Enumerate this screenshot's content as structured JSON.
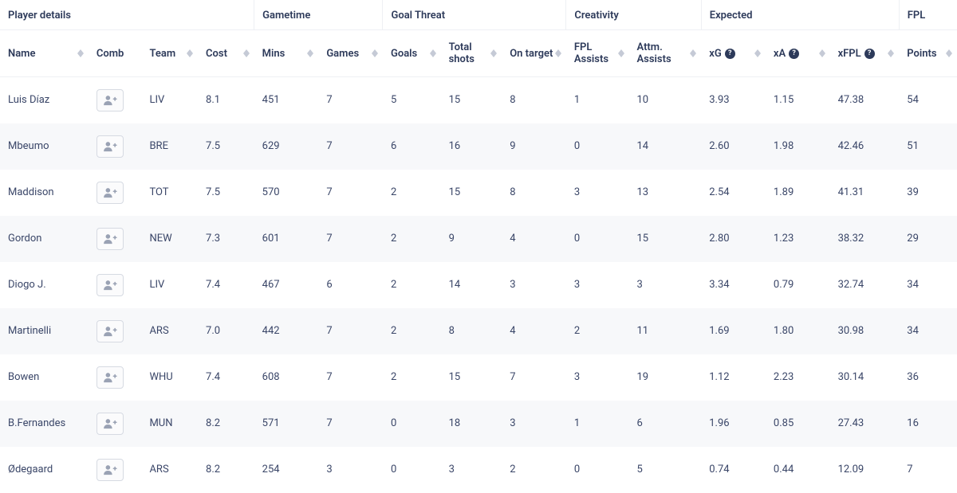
{
  "groups": {
    "player_details": "Player details",
    "gametime": "Gametime",
    "goal_threat": "Goal Threat",
    "creativity": "Creativity",
    "expected": "Expected",
    "fpl": "FPL"
  },
  "columns": {
    "name": "Name",
    "comb": "Comb",
    "team": "Team",
    "cost": "Cost",
    "mins": "Mins",
    "games": "Games",
    "goals": "Goals",
    "total_shots": "Total shots",
    "on_target": "On target",
    "fpl_assists": "FPL Assists",
    "attm_assists": "Attm. Assists",
    "xg": "xG",
    "xa": "xA",
    "xfpl": "xFPL",
    "points": "Points"
  },
  "help_glyph": "?",
  "colors": {
    "text": "#2d3a5a",
    "body_text": "#3a4668",
    "border": "#eef0f4",
    "row_alt": "#f7f8fa",
    "btn_border": "#d6dae2",
    "btn_bg": "#fbfbfc",
    "icon_muted": "#9aa2b4",
    "sort_arrow": "#c5cad6"
  },
  "rows": [
    {
      "name": "Luis Díaz",
      "team": "LIV",
      "cost": "8.1",
      "mins": "451",
      "games": "7",
      "goals": "5",
      "total_shots": "15",
      "on_target": "8",
      "fpl_assists": "1",
      "attm_assists": "10",
      "xg": "3.93",
      "xa": "1.15",
      "xfpl": "47.38",
      "points": "54"
    },
    {
      "name": "Mbeumo",
      "team": "BRE",
      "cost": "7.5",
      "mins": "629",
      "games": "7",
      "goals": "6",
      "total_shots": "16",
      "on_target": "9",
      "fpl_assists": "0",
      "attm_assists": "14",
      "xg": "2.60",
      "xa": "1.98",
      "xfpl": "42.46",
      "points": "51"
    },
    {
      "name": "Maddison",
      "team": "TOT",
      "cost": "7.5",
      "mins": "570",
      "games": "7",
      "goals": "2",
      "total_shots": "15",
      "on_target": "8",
      "fpl_assists": "3",
      "attm_assists": "13",
      "xg": "2.54",
      "xa": "1.89",
      "xfpl": "41.31",
      "points": "39"
    },
    {
      "name": "Gordon",
      "team": "NEW",
      "cost": "7.3",
      "mins": "601",
      "games": "7",
      "goals": "2",
      "total_shots": "9",
      "on_target": "4",
      "fpl_assists": "0",
      "attm_assists": "15",
      "xg": "2.80",
      "xa": "1.23",
      "xfpl": "38.32",
      "points": "29"
    },
    {
      "name": "Diogo J.",
      "team": "LIV",
      "cost": "7.4",
      "mins": "467",
      "games": "6",
      "goals": "2",
      "total_shots": "14",
      "on_target": "3",
      "fpl_assists": "3",
      "attm_assists": "3",
      "xg": "3.34",
      "xa": "0.79",
      "xfpl": "32.74",
      "points": "34"
    },
    {
      "name": "Martinelli",
      "team": "ARS",
      "cost": "7.0",
      "mins": "442",
      "games": "7",
      "goals": "2",
      "total_shots": "8",
      "on_target": "4",
      "fpl_assists": "2",
      "attm_assists": "11",
      "xg": "1.69",
      "xa": "1.80",
      "xfpl": "30.98",
      "points": "34"
    },
    {
      "name": "Bowen",
      "team": "WHU",
      "cost": "7.4",
      "mins": "608",
      "games": "7",
      "goals": "2",
      "total_shots": "15",
      "on_target": "7",
      "fpl_assists": "3",
      "attm_assists": "19",
      "xg": "1.12",
      "xa": "2.23",
      "xfpl": "30.14",
      "points": "36"
    },
    {
      "name": "B.Fernandes",
      "team": "MUN",
      "cost": "8.2",
      "mins": "571",
      "games": "7",
      "goals": "0",
      "total_shots": "18",
      "on_target": "3",
      "fpl_assists": "1",
      "attm_assists": "6",
      "xg": "1.96",
      "xa": "0.85",
      "xfpl": "27.43",
      "points": "16"
    },
    {
      "name": "Ødegaard",
      "team": "ARS",
      "cost": "8.2",
      "mins": "254",
      "games": "3",
      "goals": "0",
      "total_shots": "3",
      "on_target": "2",
      "fpl_assists": "0",
      "attm_assists": "5",
      "xg": "0.74",
      "xa": "0.44",
      "xfpl": "12.09",
      "points": "7"
    }
  ]
}
